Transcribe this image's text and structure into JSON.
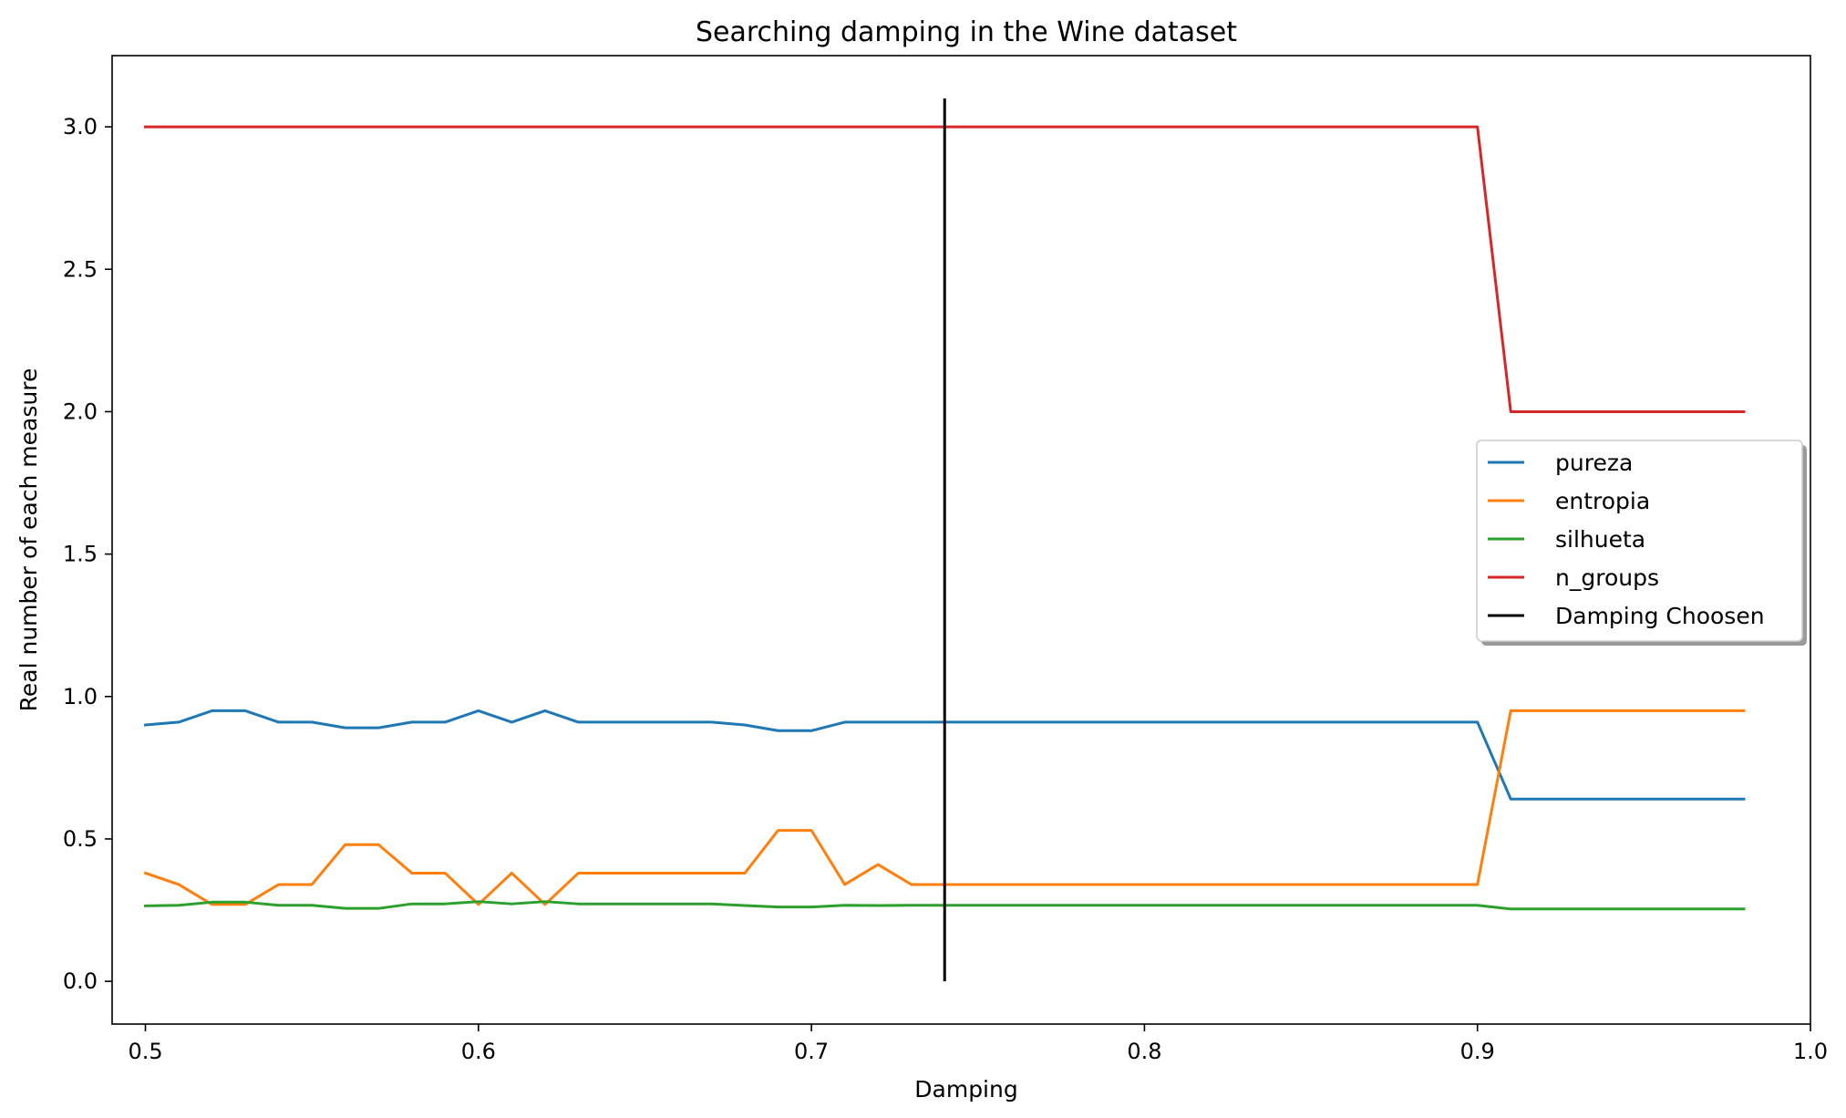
{
  "chart_data": {
    "type": "line",
    "title": "Searching damping in the Wine dataset",
    "xlabel": "Damping",
    "ylabel": "Real number of each measure",
    "xlim": [
      0.49,
      1.0
    ],
    "ylim": [
      -0.15,
      3.25
    ],
    "xticks": [
      0.5,
      0.6,
      0.7,
      0.8,
      0.9,
      1.0
    ],
    "xtick_labels": [
      "0.5",
      "0.6",
      "0.7",
      "0.8",
      "0.9",
      "1.0"
    ],
    "yticks": [
      0.0,
      0.5,
      1.0,
      1.5,
      2.0,
      2.5,
      3.0
    ],
    "ytick_labels": [
      "0.0",
      "0.5",
      "1.0",
      "1.5",
      "2.0",
      "2.5",
      "3.0"
    ],
    "grid": false,
    "legend_position": "center-right",
    "x": [
      0.5,
      0.51,
      0.52,
      0.53,
      0.54,
      0.55,
      0.56,
      0.57,
      0.58,
      0.59,
      0.6,
      0.61,
      0.62,
      0.63,
      0.64,
      0.65,
      0.66,
      0.67,
      0.68,
      0.69,
      0.7,
      0.71,
      0.72,
      0.73,
      0.74,
      0.75,
      0.76,
      0.77,
      0.78,
      0.79,
      0.8,
      0.81,
      0.82,
      0.83,
      0.84,
      0.85,
      0.86,
      0.87,
      0.88,
      0.89,
      0.9,
      0.91,
      0.92,
      0.93,
      0.94,
      0.95,
      0.96,
      0.97,
      0.98
    ],
    "series": [
      {
        "name": "pureza",
        "color": "#1f77b4",
        "values": [
          0.9,
          0.91,
          0.95,
          0.95,
          0.91,
          0.91,
          0.89,
          0.89,
          0.91,
          0.91,
          0.95,
          0.91,
          0.95,
          0.91,
          0.91,
          0.91,
          0.91,
          0.91,
          0.9,
          0.88,
          0.88,
          0.91,
          0.91,
          0.91,
          0.91,
          0.91,
          0.91,
          0.91,
          0.91,
          0.91,
          0.91,
          0.91,
          0.91,
          0.91,
          0.91,
          0.91,
          0.91,
          0.91,
          0.91,
          0.91,
          0.91,
          0.64,
          0.64,
          0.64,
          0.64,
          0.64,
          0.64,
          0.64,
          0.64
        ]
      },
      {
        "name": "entropia",
        "color": "#ff7f0e",
        "values": [
          0.38,
          0.34,
          0.27,
          0.27,
          0.34,
          0.34,
          0.48,
          0.48,
          0.38,
          0.38,
          0.27,
          0.38,
          0.27,
          0.38,
          0.38,
          0.38,
          0.38,
          0.38,
          0.38,
          0.53,
          0.53,
          0.34,
          0.41,
          0.34,
          0.34,
          0.34,
          0.34,
          0.34,
          0.34,
          0.34,
          0.34,
          0.34,
          0.34,
          0.34,
          0.34,
          0.34,
          0.34,
          0.34,
          0.34,
          0.34,
          0.34,
          0.95,
          0.95,
          0.95,
          0.95,
          0.95,
          0.95,
          0.95,
          0.95
        ]
      },
      {
        "name": "silhueta",
        "color": "#2ca02c",
        "values": [
          0.265,
          0.267,
          0.278,
          0.278,
          0.267,
          0.267,
          0.256,
          0.256,
          0.272,
          0.272,
          0.28,
          0.272,
          0.28,
          0.272,
          0.272,
          0.272,
          0.272,
          0.272,
          0.266,
          0.261,
          0.261,
          0.267,
          0.266,
          0.267,
          0.267,
          0.267,
          0.267,
          0.267,
          0.267,
          0.267,
          0.267,
          0.267,
          0.267,
          0.267,
          0.267,
          0.267,
          0.267,
          0.267,
          0.267,
          0.267,
          0.267,
          0.254,
          0.254,
          0.254,
          0.254,
          0.254,
          0.254,
          0.254,
          0.254
        ]
      },
      {
        "name": "n_groups",
        "color": "#d62728",
        "values": [
          3,
          3,
          3,
          3,
          3,
          3,
          3,
          3,
          3,
          3,
          3,
          3,
          3,
          3,
          3,
          3,
          3,
          3,
          3,
          3,
          3,
          3,
          3,
          3,
          3,
          3,
          3,
          3,
          3,
          3,
          3,
          3,
          3,
          3,
          3,
          3,
          3,
          3,
          3,
          3,
          3,
          2,
          2,
          2,
          2,
          2,
          2,
          2,
          2
        ]
      }
    ],
    "vline": {
      "name": "Damping Choosen",
      "color": "#000000",
      "x": 0.74,
      "ymin": 0.0,
      "ymax": 3.1
    }
  }
}
